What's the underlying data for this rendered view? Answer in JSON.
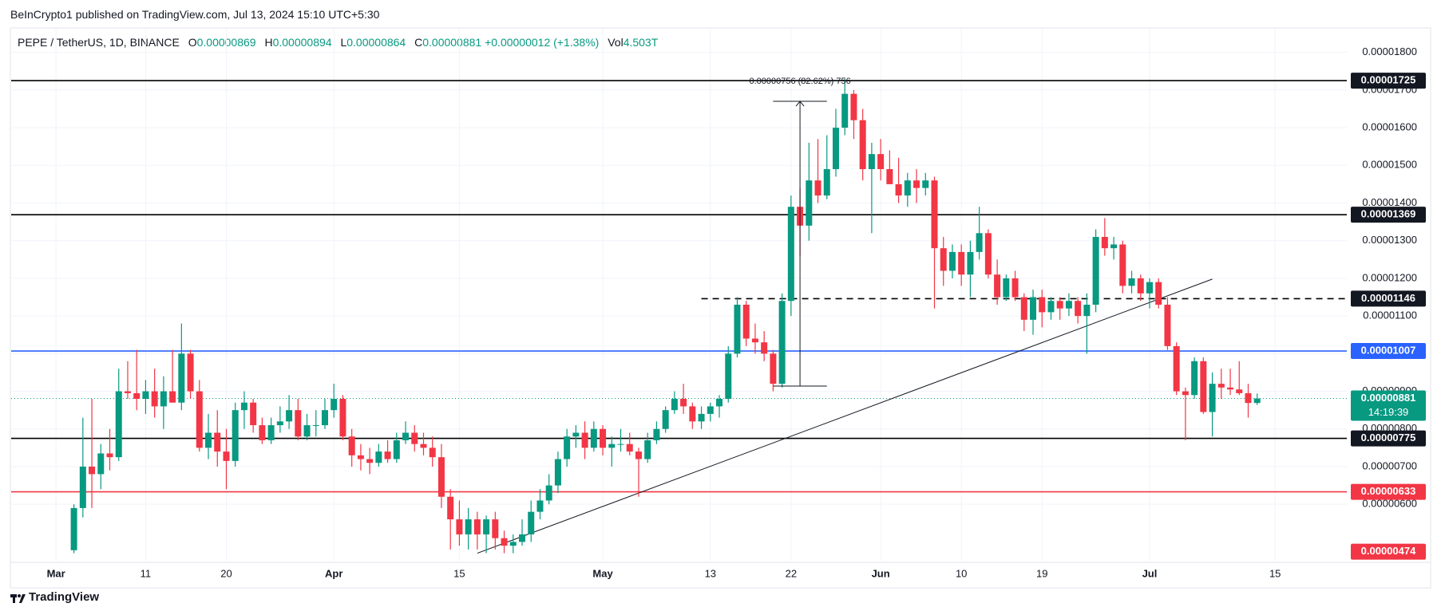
{
  "header": {
    "text": "BeInCrypto1 published on TradingView.com, Jul 13, 2024 15:10 UTC+5:30"
  },
  "legend": {
    "symbol": "PEPE / TetherUS, 1D, BINANCE",
    "open_label": "O",
    "open": "0.00000869",
    "high_label": "H",
    "high": "0.00000894",
    "low_label": "L",
    "low": "0.00000864",
    "close_label": "C",
    "close": "0.00000881",
    "change": "+0.00000012 (+1.38%)",
    "volume_label": "Vol",
    "volume": "4.503T"
  },
  "footer": {
    "brand": "TradingView"
  },
  "chart_data": {
    "type": "candlestick",
    "up_color": "#089981",
    "down_color": "#f23645",
    "grid": true,
    "xlim": [
      "2024-02-25",
      "2024-07-23"
    ],
    "xticks": [
      {
        "value": "2024-03-01",
        "label": "Mar"
      },
      {
        "value": "2024-03-11",
        "label": "11"
      },
      {
        "value": "2024-03-20",
        "label": "20"
      },
      {
        "value": "2024-04-01",
        "label": "Apr"
      },
      {
        "value": "2024-04-15",
        "label": "15"
      },
      {
        "value": "2024-05-01",
        "label": "May"
      },
      {
        "value": "2024-05-13",
        "label": "13"
      },
      {
        "value": "2024-05-22",
        "label": "22"
      },
      {
        "value": "2024-06-01",
        "label": "Jun"
      },
      {
        "value": "2024-06-10",
        "label": "10"
      },
      {
        "value": "2024-06-19",
        "label": "19"
      },
      {
        "value": "2024-07-01",
        "label": "Jul"
      },
      {
        "value": "2024-07-15",
        "label": "15"
      }
    ],
    "ylim": [
      4.5e-06,
      1.865e-05
    ],
    "yticks": [
      {
        "value": 6e-06,
        "label": "0.00000600"
      },
      {
        "value": 7e-06,
        "label": "0.00000700"
      },
      {
        "value": 8e-06,
        "label": "0.00000800"
      },
      {
        "value": 9e-06,
        "label": "0.00000900"
      },
      {
        "value": 1e-05,
        "label": "0.00001000"
      },
      {
        "value": 1.1e-05,
        "label": "0.00001100"
      },
      {
        "value": 1.2e-05,
        "label": "0.00001200"
      },
      {
        "value": 1.3e-05,
        "label": "0.00001300"
      },
      {
        "value": 1.4e-05,
        "label": "0.00001400"
      },
      {
        "value": 1.5e-05,
        "label": "0.00001500"
      },
      {
        "value": 1.6e-05,
        "label": "0.00001600"
      },
      {
        "value": 1.7e-05,
        "label": "0.00001700"
      },
      {
        "value": 1.8e-05,
        "label": "0.00001800"
      }
    ],
    "x": [
      "2024-03-03",
      "2024-03-04",
      "2024-03-05",
      "2024-03-06",
      "2024-03-07",
      "2024-03-08",
      "2024-03-09",
      "2024-03-10",
      "2024-03-11",
      "2024-03-12",
      "2024-03-13",
      "2024-03-14",
      "2024-03-15",
      "2024-03-16",
      "2024-03-17",
      "2024-03-18",
      "2024-03-19",
      "2024-03-20",
      "2024-03-21",
      "2024-03-22",
      "2024-03-23",
      "2024-03-24",
      "2024-03-25",
      "2024-03-26",
      "2024-03-27",
      "2024-03-28",
      "2024-03-29",
      "2024-03-30",
      "2024-03-31",
      "2024-04-01",
      "2024-04-02",
      "2024-04-03",
      "2024-04-04",
      "2024-04-05",
      "2024-04-06",
      "2024-04-07",
      "2024-04-08",
      "2024-04-09",
      "2024-04-10",
      "2024-04-11",
      "2024-04-12",
      "2024-04-13",
      "2024-04-14",
      "2024-04-15",
      "2024-04-16",
      "2024-04-17",
      "2024-04-18",
      "2024-04-19",
      "2024-04-20",
      "2024-04-21",
      "2024-04-22",
      "2024-04-23",
      "2024-04-24",
      "2024-04-25",
      "2024-04-26",
      "2024-04-27",
      "2024-04-28",
      "2024-04-29",
      "2024-04-30",
      "2024-05-01",
      "2024-05-02",
      "2024-05-03",
      "2024-05-04",
      "2024-05-05",
      "2024-05-06",
      "2024-05-07",
      "2024-05-08",
      "2024-05-09",
      "2024-05-10",
      "2024-05-11",
      "2024-05-12",
      "2024-05-13",
      "2024-05-14",
      "2024-05-15",
      "2024-05-16",
      "2024-05-17",
      "2024-05-18",
      "2024-05-19",
      "2024-05-20",
      "2024-05-21",
      "2024-05-22",
      "2024-05-23",
      "2024-05-24",
      "2024-05-25",
      "2024-05-26",
      "2024-05-27",
      "2024-05-28",
      "2024-05-29",
      "2024-05-30",
      "2024-05-31",
      "2024-06-01",
      "2024-06-02",
      "2024-06-03",
      "2024-06-04",
      "2024-06-05",
      "2024-06-06",
      "2024-06-07",
      "2024-06-08",
      "2024-06-09",
      "2024-06-10",
      "2024-06-11",
      "2024-06-12",
      "2024-06-13",
      "2024-06-14",
      "2024-06-15",
      "2024-06-16",
      "2024-06-17",
      "2024-06-18",
      "2024-06-19",
      "2024-06-20",
      "2024-06-21",
      "2024-06-22",
      "2024-06-23",
      "2024-06-24",
      "2024-06-25",
      "2024-06-26",
      "2024-06-27",
      "2024-06-28",
      "2024-06-29",
      "2024-06-30",
      "2024-07-01",
      "2024-07-02",
      "2024-07-03",
      "2024-07-04",
      "2024-07-05",
      "2024-07-06",
      "2024-07-07",
      "2024-07-08",
      "2024-07-09",
      "2024-07-10",
      "2024-07-11",
      "2024-07-12",
      "2024-07-13"
    ],
    "open": [
      4.78e-06,
      5.9e-06,
      7e-06,
      6.8e-06,
      7.35e-06,
      7.25e-06,
      9e-06,
      8.95e-06,
      8.8e-06,
      9e-06,
      8.6e-06,
      9e-06,
      8.7e-06,
      1e-05,
      9e-06,
      7.5e-06,
      7.9e-06,
      7.4e-06,
      7.15e-06,
      8.5e-06,
      8.7e-06,
      8.1e-06,
      7.7e-06,
      8.1e-06,
      8.2e-06,
      8.5e-06,
      7.8e-06,
      8.1e-06,
      8.1e-06,
      8.5e-06,
      8.8e-06,
      7.8e-06,
      7.3e-06,
      7.2e-06,
      7.1e-06,
      7.4e-06,
      7.2e-06,
      7.7e-06,
      7.9e-06,
      7.6e-06,
      7.5e-06,
      7.25e-06,
      6.2e-06,
      5.6e-06,
      5.2e-06,
      5.6e-06,
      5.2e-06,
      5.6e-06,
      5.1e-06,
      4.9e-06,
      5e-06,
      5.2e-06,
      5.8e-06,
      6.1e-06,
      6.5e-06,
      7.2e-06,
      7.8e-06,
      7.9e-06,
      7.5e-06,
      8e-06,
      7.5e-06,
      7.6e-06,
      7.6e-06,
      7.4e-06,
      7.2e-06,
      7.7e-06,
      8e-06,
      8.5e-06,
      8.8e-06,
      8.6e-06,
      8.2e-06,
      8.4e-06,
      8.6e-06,
      8.8e-06,
      1e-05,
      1.13e-05,
      1.04e-05,
      1.03e-05,
      1e-05,
      9.2e-06,
      1.14e-05,
      1.39e-05,
      1.34e-05,
      1.46e-05,
      1.42e-05,
      1.49e-05,
      1.6e-05,
      1.69e-05,
      1.62e-05,
      1.49e-05,
      1.53e-05,
      1.49e-05,
      1.45e-05,
      1.42e-05,
      1.46e-05,
      1.44e-05,
      1.46e-05,
      1.28e-05,
      1.22e-05,
      1.27e-05,
      1.21e-05,
      1.27e-05,
      1.32e-05,
      1.21e-05,
      1.15e-05,
      1.2e-05,
      1.15e-05,
      1.09e-05,
      1.15e-05,
      1.11e-05,
      1.14e-05,
      1.12e-05,
      1.14e-05,
      1.1e-05,
      1.13e-05,
      1.31e-05,
      1.28e-05,
      1.29e-05,
      1.18e-05,
      1.2e-05,
      1.16e-05,
      1.19e-05,
      1.13e-05,
      1.02e-05,
      9e-06,
      8.9e-06,
      9.8e-06,
      8.45e-06,
      9.2e-06,
      9.1e-06,
      9.05e-06,
      8.95e-06,
      8.69e-06
    ],
    "high": [
      6e-06,
      8.3e-06,
      8.8e-06,
      7.6e-06,
      8e-06,
      9.6e-06,
      9.8e-06,
      1.01e-05,
      9.3e-06,
      9.6e-06,
      9.4e-06,
      1.01e-05,
      1.08e-05,
      1.01e-05,
      9.3e-06,
      8.4e-06,
      8.5e-06,
      8e-06,
      8.7e-06,
      9e-06,
      8.8e-06,
      8.3e-06,
      8.3e-06,
      8.6e-06,
      8.9e-06,
      8.8e-06,
      8.4e-06,
      8.5e-06,
      8.8e-06,
      9.2e-06,
      8.9e-06,
      8e-06,
      7.6e-06,
      7.5e-06,
      7.6e-06,
      7.7e-06,
      7.9e-06,
      8.2e-06,
      8.1e-06,
      7.9e-06,
      7.8e-06,
      7.6e-06,
      6.4e-06,
      6.1e-06,
      5.9e-06,
      5.8e-06,
      5.7e-06,
      5.8e-06,
      5.3e-06,
      5.2e-06,
      5.6e-06,
      6.1e-06,
      6.4e-06,
      6.8e-06,
      7.4e-06,
      8e-06,
      8.1e-06,
      8.2e-06,
      8.2e-06,
      8.1e-06,
      7.8e-06,
      8e-06,
      7.9e-06,
      7.5e-06,
      7.9e-06,
      8.2e-06,
      8.6e-06,
      9e-06,
      9.2e-06,
      8.7e-06,
      8.6e-06,
      8.7e-06,
      8.9e-06,
      1.02e-05,
      1.15e-05,
      1.14e-05,
      1.08e-05,
      1.06e-05,
      1.01e-05,
      1.16e-05,
      1.42e-05,
      1.44e-05,
      1.56e-05,
      1.57e-05,
      1.58e-05,
      1.65e-05,
      1.73e-05,
      1.7e-05,
      1.65e-05,
      1.56e-05,
      1.57e-05,
      1.54e-05,
      1.52e-05,
      1.48e-05,
      1.49e-05,
      1.48e-05,
      1.47e-05,
      1.31e-05,
      1.29e-05,
      1.29e-05,
      1.3e-05,
      1.39e-05,
      1.33e-05,
      1.25e-05,
      1.21e-05,
      1.22e-05,
      1.16e-05,
      1.17e-05,
      1.17e-05,
      1.15e-05,
      1.15e-05,
      1.16e-05,
      1.15e-05,
      1.16e-05,
      1.33e-05,
      1.36e-05,
      1.31e-05,
      1.3e-05,
      1.22e-05,
      1.21e-05,
      1.2e-05,
      1.2e-05,
      1.15e-05,
      1.03e-05,
      9.1e-06,
      9.9e-06,
      9.9e-06,
      9.5e-06,
      9.6e-06,
      9.6e-06,
      9.8e-06,
      9.2e-06,
      8.94e-06
    ],
    "low": [
      4.7e-06,
      5.65e-06,
      5.9e-06,
      6.4e-06,
      6.9e-06,
      7.15e-06,
      8.8e-06,
      8.5e-06,
      8.4e-06,
      8.3e-06,
      8e-06,
      8.7e-06,
      8.5e-06,
      8.8e-06,
      7.4e-06,
      7.2e-06,
      7e-06,
      6.4e-06,
      7e-06,
      8e-06,
      7.9e-06,
      7.6e-06,
      7.6e-06,
      7.9e-06,
      8e-06,
      7.7e-06,
      7.7e-06,
      7.8e-06,
      8e-06,
      8.3e-06,
      7.7e-06,
      7e-06,
      6.9e-06,
      6.8e-06,
      7e-06,
      7.1e-06,
      7.1e-06,
      7.6e-06,
      7.4e-06,
      7.3e-06,
      7e-06,
      5.9e-06,
      4.8e-06,
      4.9e-06,
      4.8e-06,
      4.8e-06,
      4.7e-06,
      4.8e-06,
      4.7e-06,
      4.7e-06,
      4.9e-06,
      5e-06,
      5.6e-06,
      6e-06,
      6.3e-06,
      7e-06,
      7.5e-06,
      7.2e-06,
      7.4e-06,
      7.3e-06,
      7e-06,
      7.4e-06,
      7.3e-06,
      6.2e-06,
      7.1e-06,
      7.6e-06,
      7.9e-06,
      8.4e-06,
      8.4e-06,
      8e-06,
      8e-06,
      8.2e-06,
      8.3e-06,
      8.7e-06,
      9.9e-06,
      1.02e-05,
      1e-05,
      9.8e-06,
      9e-06,
      9.1e-06,
      1.1e-05,
      1.26e-05,
      1.3e-05,
      1.4e-05,
      1.41e-05,
      1.47e-05,
      1.58e-05,
      1.57e-05,
      1.46e-05,
      1.32e-05,
      1.46e-05,
      1.45e-05,
      1.4e-05,
      1.39e-05,
      1.4e-05,
      1.42e-05,
      1.12e-05,
      1.18e-05,
      1.2e-05,
      1.18e-05,
      1.15e-05,
      1.25e-05,
      1.2e-05,
      1.13e-05,
      1.14e-05,
      1.14e-05,
      1.06e-05,
      1.05e-05,
      1.07e-05,
      1.09e-05,
      1.09e-05,
      1.1e-05,
      1.08e-05,
      1e-05,
      1.11e-05,
      1.26e-05,
      1.25e-05,
      1.16e-05,
      1.16e-05,
      1.14e-05,
      1.12e-05,
      1.12e-05,
      1.01e-05,
      8.9e-06,
      7.7e-06,
      8.8e-06,
      8.4e-06,
      7.8e-06,
      8.8e-06,
      8.9e-06,
      8.9e-06,
      8.3e-06,
      8.64e-06
    ],
    "close": [
      5.9e-06,
      7e-06,
      6.8e-06,
      7.35e-06,
      7.25e-06,
      9e-06,
      8.95e-06,
      8.8e-06,
      9e-06,
      8.6e-06,
      9e-06,
      8.7e-06,
      1e-05,
      9e-06,
      7.5e-06,
      7.9e-06,
      7.4e-06,
      7.15e-06,
      8.5e-06,
      8.7e-06,
      8.1e-06,
      7.7e-06,
      8.1e-06,
      8.2e-06,
      8.5e-06,
      7.8e-06,
      8.1e-06,
      8.1e-06,
      8.5e-06,
      8.8e-06,
      7.8e-06,
      7.3e-06,
      7.2e-06,
      7.1e-06,
      7.4e-06,
      7.2e-06,
      7.7e-06,
      7.9e-06,
      7.6e-06,
      7.5e-06,
      7.25e-06,
      6.2e-06,
      5.6e-06,
      5.2e-06,
      5.6e-06,
      5.2e-06,
      5.6e-06,
      5.1e-06,
      4.9e-06,
      5e-06,
      5.2e-06,
      5.8e-06,
      6.1e-06,
      6.5e-06,
      7.2e-06,
      7.8e-06,
      7.9e-06,
      7.5e-06,
      8e-06,
      7.5e-06,
      7.6e-06,
      7.6e-06,
      7.4e-06,
      7.2e-06,
      7.7e-06,
      8e-06,
      8.5e-06,
      8.8e-06,
      8.6e-06,
      8.2e-06,
      8.4e-06,
      8.6e-06,
      8.8e-06,
      1e-05,
      1.13e-05,
      1.04e-05,
      1.03e-05,
      1e-05,
      9.2e-06,
      1.14e-05,
      1.39e-05,
      1.34e-05,
      1.46e-05,
      1.42e-05,
      1.49e-05,
      1.6e-05,
      1.69e-05,
      1.62e-05,
      1.49e-05,
      1.53e-05,
      1.49e-05,
      1.45e-05,
      1.42e-05,
      1.46e-05,
      1.44e-05,
      1.46e-05,
      1.28e-05,
      1.22e-05,
      1.27e-05,
      1.21e-05,
      1.27e-05,
      1.32e-05,
      1.21e-05,
      1.15e-05,
      1.2e-05,
      1.15e-05,
      1.09e-05,
      1.15e-05,
      1.11e-05,
      1.14e-05,
      1.12e-05,
      1.14e-05,
      1.1e-05,
      1.13e-05,
      1.31e-05,
      1.28e-05,
      1.29e-05,
      1.18e-05,
      1.2e-05,
      1.16e-05,
      1.19e-05,
      1.13e-05,
      1.02e-05,
      9e-06,
      8.9e-06,
      9.8e-06,
      8.45e-06,
      9.2e-06,
      9.1e-06,
      9.05e-06,
      8.95e-06,
      8.69e-06,
      8.81e-06
    ],
    "levels": [
      {
        "value": 1.725e-05,
        "label": "0.00001725",
        "color": "#000000",
        "line": true
      },
      {
        "value": 1.369e-05,
        "label": "0.00001369",
        "color": "#000000",
        "line": true
      },
      {
        "value": 1.146e-05,
        "label": "0.00001146",
        "color": "#000000",
        "line": true,
        "dashed": true,
        "start": "2024-05-12"
      },
      {
        "value": 1.007e-05,
        "label": "0.00001007",
        "color": "#2962ff",
        "line": true
      },
      {
        "value": 7.75e-06,
        "label": "0.00000775",
        "color": "#000000",
        "line": true
      },
      {
        "value": 6.33e-06,
        "label": "0.00000633",
        "color": "#f23645",
        "line": true
      },
      {
        "value": 4.74e-06,
        "label": "0.00000474",
        "color": "#f23645",
        "line": false
      }
    ],
    "last_price": {
      "value": 8.81e-06,
      "label": "0.00000881",
      "countdown": "14:19:39",
      "color": "#089981"
    },
    "trend_line": {
      "start": {
        "x": "2024-04-17",
        "y": 4.7e-06
      },
      "end": {
        "x": "2024-07-08",
        "y": 1.198e-05
      }
    },
    "measure": {
      "text": "0.00000756 (82.62%) 756",
      "x": "2024-05-23",
      "x_start": "2024-05-20",
      "x_end": "2024-05-26",
      "from": 9.14e-06,
      "to": 1.67e-05
    }
  }
}
